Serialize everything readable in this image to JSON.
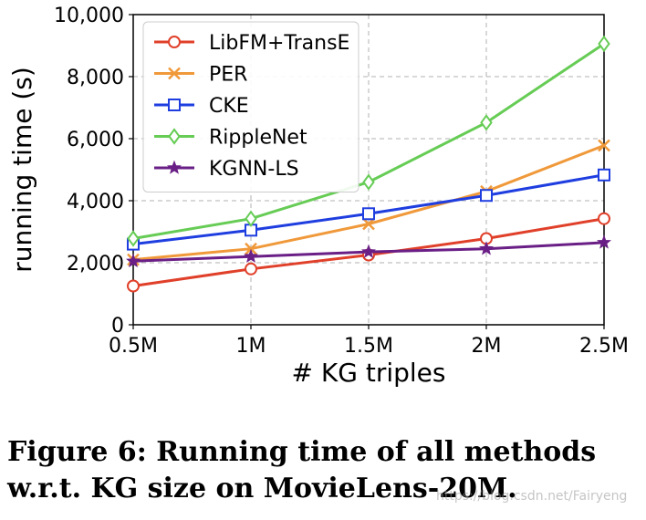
{
  "chart_data": {
    "type": "line",
    "title": "",
    "xlabel": "# KG triples",
    "ylabel": "running time (s)",
    "categories": [
      "0.5M",
      "1M",
      "1.5M",
      "2M",
      "2.5M"
    ],
    "x": [
      0.5,
      1.0,
      1.5,
      2.0,
      2.5
    ],
    "xlim": [
      0.5,
      2.5
    ],
    "ylim": [
      0,
      10000
    ],
    "yticks": [
      0,
      2000,
      4000,
      6000,
      8000,
      10000
    ],
    "ytick_labels": [
      "0",
      "2,000",
      "4,000",
      "6,000",
      "8,000",
      "10,000"
    ],
    "grid": true,
    "legend_position": "top-left",
    "series": [
      {
        "name": "LibFM+TransE",
        "marker": "circle",
        "color": "#e0402a",
        "values": [
          1250,
          1800,
          2250,
          2780,
          3420
        ]
      },
      {
        "name": "PER",
        "marker": "x",
        "color": "#f0993a",
        "values": [
          2100,
          2450,
          3250,
          4300,
          5780
        ]
      },
      {
        "name": "CKE",
        "marker": "square",
        "color": "#1f3ee0",
        "values": [
          2600,
          3050,
          3580,
          4170,
          4830
        ]
      },
      {
        "name": "RippleNet",
        "marker": "diamond",
        "color": "#66cc55",
        "values": [
          2780,
          3420,
          4600,
          6520,
          9060
        ]
      },
      {
        "name": "KGNN-LS",
        "marker": "star",
        "color": "#6a1f86",
        "values": [
          2050,
          2200,
          2350,
          2450,
          2650
        ]
      }
    ]
  },
  "caption": {
    "line1": "Figure 6: Running time of all methods",
    "line2": "w.r.t. KG size on MovieLens-20M."
  },
  "watermark": "https://blog.csdn.net/Fairyeng"
}
